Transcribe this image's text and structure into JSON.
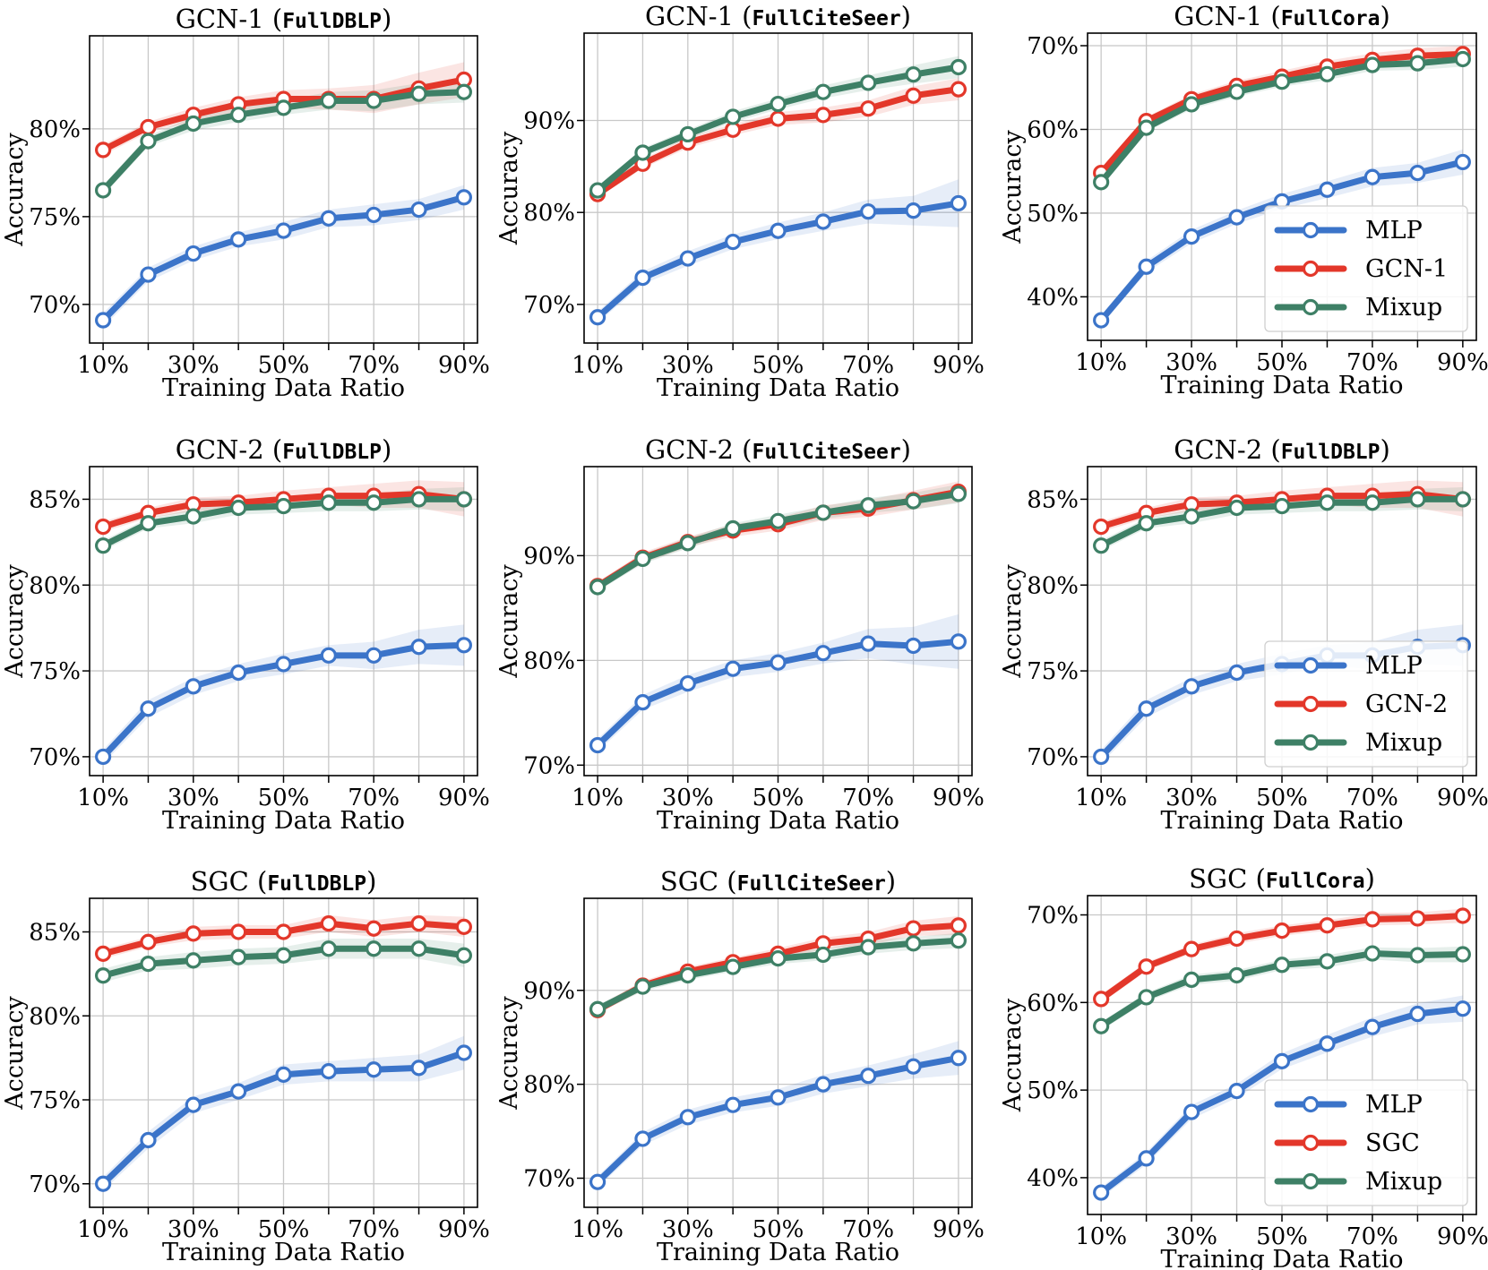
{
  "colors": {
    "MLP": "#3b74c9",
    "GCN-1": "#e3372a",
    "GCN-2": "#e3372a",
    "SGC": "#e3372a",
    "Mixup": "#3e8066"
  },
  "chart_data": [
    {
      "type": "line",
      "model": "GCN-1",
      "dataset": "FullDBLP",
      "xlabel": "Training Data Ratio",
      "ylabel": "Accuracy",
      "x": [
        10,
        20,
        30,
        40,
        50,
        60,
        70,
        80,
        90
      ],
      "xticks": [
        "10%",
        "30%",
        "50%",
        "70%",
        "90%"
      ],
      "ylim": [
        67.8,
        85.3
      ],
      "yticks": [
        70,
        75,
        80
      ],
      "ytick_labels": [
        "70%",
        "75%",
        "80%"
      ],
      "legend": false,
      "series": [
        {
          "name": "MLP",
          "values": [
            69.1,
            71.7,
            72.9,
            73.7,
            74.2,
            74.9,
            75.1,
            75.4,
            76.1
          ],
          "spread": [
            0.4,
            0.4,
            0.4,
            0.4,
            0.5,
            0.5,
            0.6,
            0.6,
            0.7
          ]
        },
        {
          "name": "GCN-1",
          "values": [
            78.8,
            80.1,
            80.8,
            81.4,
            81.7,
            81.7,
            81.7,
            82.3,
            82.8
          ],
          "spread": [
            0.3,
            0.3,
            0.4,
            0.4,
            0.5,
            0.6,
            0.8,
            0.9,
            1.0
          ]
        },
        {
          "name": "Mixup",
          "values": [
            76.5,
            79.3,
            80.3,
            80.8,
            81.2,
            81.6,
            81.6,
            82.0,
            82.1
          ],
          "spread": [
            0.3,
            0.3,
            0.4,
            0.4,
            0.4,
            0.5,
            0.6,
            0.6,
            0.6
          ]
        }
      ]
    },
    {
      "type": "line",
      "model": "GCN-1",
      "dataset": "FullCiteSeer",
      "xlabel": "Training Data Ratio",
      "ylabel": "Accuracy",
      "x": [
        10,
        20,
        30,
        40,
        50,
        60,
        70,
        80,
        90
      ],
      "xticks": [
        "10%",
        "30%",
        "50%",
        "70%",
        "90%"
      ],
      "ylim": [
        65.8,
        99.5
      ],
      "yticks": [
        70,
        80,
        90
      ],
      "ytick_labels": [
        "70%",
        "80%",
        "90%"
      ],
      "legend": false,
      "series": [
        {
          "name": "MLP",
          "values": [
            68.6,
            72.9,
            75.0,
            76.8,
            78.0,
            79.0,
            80.1,
            80.2,
            81.0
          ],
          "spread": [
            0.6,
            0.7,
            0.8,
            0.8,
            0.9,
            1.0,
            1.3,
            1.6,
            2.6
          ]
        },
        {
          "name": "GCN-1",
          "values": [
            82.0,
            85.3,
            87.6,
            89.0,
            90.2,
            90.6,
            91.3,
            92.7,
            93.4
          ],
          "spread": [
            0.4,
            0.5,
            0.6,
            0.6,
            0.7,
            0.8,
            0.9,
            1.0,
            1.2
          ]
        },
        {
          "name": "Mixup",
          "values": [
            82.4,
            86.5,
            88.5,
            90.4,
            91.8,
            93.1,
            94.1,
            95.0,
            95.8
          ],
          "spread": [
            0.4,
            0.5,
            0.5,
            0.6,
            0.6,
            0.7,
            0.8,
            1.0,
            1.2
          ]
        }
      ]
    },
    {
      "type": "line",
      "model": "GCN-1",
      "dataset": "FullCora",
      "xlabel": "Training Data Ratio",
      "ylabel": "Accuracy",
      "x": [
        10,
        20,
        30,
        40,
        50,
        60,
        70,
        80,
        90
      ],
      "xticks": [
        "10%",
        "30%",
        "50%",
        "70%",
        "90%"
      ],
      "ylim": [
        34.8,
        71.5
      ],
      "yticks": [
        40,
        50,
        60,
        70
      ],
      "ytick_labels": [
        "40%",
        "50%",
        "60%",
        "70%"
      ],
      "legend": true,
      "legend_position": "lower-right",
      "series": [
        {
          "name": "MLP",
          "values": [
            37.2,
            43.6,
            47.2,
            49.5,
            51.4,
            52.8,
            54.3,
            54.8,
            56.1
          ],
          "spread": [
            0.6,
            0.7,
            0.8,
            0.8,
            0.9,
            1.0,
            1.1,
            1.2,
            1.5
          ]
        },
        {
          "name": "GCN-1",
          "values": [
            54.8,
            61.0,
            63.6,
            65.2,
            66.3,
            67.5,
            68.3,
            68.8,
            69.0
          ],
          "spread": [
            0.5,
            0.5,
            0.6,
            0.6,
            0.7,
            0.7,
            0.8,
            0.9,
            1.0
          ]
        },
        {
          "name": "Mixup",
          "values": [
            53.7,
            60.2,
            63.0,
            64.5,
            65.7,
            66.6,
            67.7,
            67.9,
            68.4
          ],
          "spread": [
            0.5,
            0.5,
            0.6,
            0.6,
            0.6,
            0.7,
            0.7,
            0.8,
            0.9
          ]
        }
      ]
    },
    {
      "type": "line",
      "model": "GCN-2",
      "dataset": "FullDBLP",
      "xlabel": "Training Data Ratio",
      "ylabel": "Accuracy",
      "x": [
        10,
        20,
        30,
        40,
        50,
        60,
        70,
        80,
        90
      ],
      "xticks": [
        "10%",
        "30%",
        "50%",
        "70%",
        "90%"
      ],
      "ylim": [
        68.9,
        86.9
      ],
      "yticks": [
        70,
        75,
        80,
        85
      ],
      "ytick_labels": [
        "70%",
        "75%",
        "80%",
        "85%"
      ],
      "legend": false,
      "series": [
        {
          "name": "MLP",
          "values": [
            70.0,
            72.8,
            74.1,
            74.9,
            75.4,
            75.9,
            75.9,
            76.4,
            76.5
          ],
          "spread": [
            0.4,
            0.5,
            0.5,
            0.5,
            0.6,
            0.6,
            0.8,
            1.0,
            1.2
          ]
        },
        {
          "name": "GCN-2",
          "values": [
            83.4,
            84.2,
            84.7,
            84.8,
            85.0,
            85.2,
            85.2,
            85.3,
            85.0
          ],
          "spread": [
            0.3,
            0.3,
            0.4,
            0.4,
            0.5,
            0.5,
            0.7,
            0.8,
            1.0
          ]
        },
        {
          "name": "Mixup",
          "values": [
            82.3,
            83.6,
            84.0,
            84.5,
            84.6,
            84.8,
            84.8,
            85.0,
            85.0
          ],
          "spread": [
            0.3,
            0.3,
            0.4,
            0.4,
            0.4,
            0.5,
            0.5,
            0.6,
            0.7
          ]
        }
      ]
    },
    {
      "type": "line",
      "model": "GCN-2",
      "dataset": "FullCiteSeer",
      "xlabel": "Training Data Ratio",
      "ylabel": "Accuracy",
      "x": [
        10,
        20,
        30,
        40,
        50,
        60,
        70,
        80,
        90
      ],
      "xticks": [
        "10%",
        "30%",
        "50%",
        "70%",
        "90%"
      ],
      "ylim": [
        69.0,
        98.5
      ],
      "yticks": [
        70,
        80,
        90
      ],
      "ytick_labels": [
        "70%",
        "80%",
        "90%"
      ],
      "legend": false,
      "series": [
        {
          "name": "MLP",
          "values": [
            71.9,
            76.0,
            77.8,
            79.2,
            79.8,
            80.7,
            81.6,
            81.4,
            81.8
          ],
          "spread": [
            0.6,
            0.7,
            0.8,
            0.8,
            0.9,
            1.0,
            1.4,
            1.8,
            2.6
          ]
        },
        {
          "name": "GCN-2",
          "values": [
            87.1,
            89.8,
            91.3,
            92.4,
            93.0,
            94.1,
            94.5,
            95.3,
            96.1
          ],
          "spread": [
            0.4,
            0.5,
            0.5,
            0.6,
            0.6,
            0.7,
            0.8,
            0.9,
            1.0
          ]
        },
        {
          "name": "Mixup",
          "values": [
            87.0,
            89.7,
            91.2,
            92.6,
            93.3,
            94.1,
            94.8,
            95.2,
            95.9
          ],
          "spread": [
            0.4,
            0.5,
            0.5,
            0.5,
            0.6,
            0.6,
            0.7,
            0.8,
            0.9
          ]
        }
      ]
    },
    {
      "type": "line",
      "model": "GCN-2",
      "dataset": "FullDBLP",
      "xlabel": "Training Data Ratio",
      "ylabel": "Accuracy",
      "x": [
        10,
        20,
        30,
        40,
        50,
        60,
        70,
        80,
        90
      ],
      "xticks": [
        "10%",
        "30%",
        "50%",
        "70%",
        "90%"
      ],
      "ylim": [
        68.9,
        86.9
      ],
      "yticks": [
        70,
        75,
        80,
        85
      ],
      "ytick_labels": [
        "70%",
        "75%",
        "80%",
        "85%"
      ],
      "legend": true,
      "legend_position": "lower-right",
      "series": [
        {
          "name": "MLP",
          "values": [
            70.0,
            72.8,
            74.1,
            74.9,
            75.4,
            75.9,
            75.9,
            76.4,
            76.5
          ],
          "spread": [
            0.4,
            0.5,
            0.5,
            0.5,
            0.6,
            0.6,
            0.8,
            1.0,
            1.2
          ]
        },
        {
          "name": "GCN-2",
          "values": [
            83.4,
            84.2,
            84.7,
            84.8,
            85.0,
            85.2,
            85.2,
            85.3,
            85.0
          ],
          "spread": [
            0.3,
            0.3,
            0.4,
            0.4,
            0.5,
            0.5,
            0.7,
            0.8,
            1.0
          ]
        },
        {
          "name": "Mixup",
          "values": [
            82.3,
            83.6,
            84.0,
            84.5,
            84.6,
            84.8,
            84.8,
            85.0,
            85.0
          ],
          "spread": [
            0.3,
            0.3,
            0.4,
            0.4,
            0.4,
            0.5,
            0.5,
            0.6,
            0.7
          ]
        }
      ]
    },
    {
      "type": "line",
      "model": "SGC",
      "dataset": "FullDBLP",
      "xlabel": "Training Data Ratio",
      "ylabel": "Accuracy",
      "x": [
        10,
        20,
        30,
        40,
        50,
        60,
        70,
        80,
        90
      ],
      "xticks": [
        "10%",
        "30%",
        "50%",
        "70%",
        "90%"
      ],
      "ylim": [
        68.6,
        87.0
      ],
      "yticks": [
        70,
        75,
        80,
        85
      ],
      "ytick_labels": [
        "70%",
        "75%",
        "80%",
        "85%"
      ],
      "legend": false,
      "series": [
        {
          "name": "MLP",
          "values": [
            70.0,
            72.6,
            74.7,
            75.5,
            76.5,
            76.7,
            76.8,
            76.9,
            77.8
          ],
          "spread": [
            0.4,
            0.5,
            0.5,
            0.5,
            0.6,
            0.6,
            0.7,
            0.8,
            1.0
          ]
        },
        {
          "name": "SGC",
          "values": [
            83.7,
            84.4,
            84.9,
            85.0,
            85.0,
            85.5,
            85.2,
            85.5,
            85.3
          ],
          "spread": [
            0.3,
            0.3,
            0.4,
            0.4,
            0.4,
            0.5,
            0.5,
            0.5,
            0.6
          ]
        },
        {
          "name": "Mixup",
          "values": [
            82.4,
            83.1,
            83.3,
            83.5,
            83.6,
            84.0,
            84.0,
            84.0,
            83.6
          ],
          "spread": [
            0.4,
            0.4,
            0.5,
            0.5,
            0.5,
            0.6,
            0.6,
            0.6,
            0.7
          ]
        }
      ]
    },
    {
      "type": "line",
      "model": "SGC",
      "dataset": "FullCiteSeer",
      "xlabel": "Training Data Ratio",
      "ylabel": "Accuracy",
      "x": [
        10,
        20,
        30,
        40,
        50,
        60,
        70,
        80,
        90
      ],
      "xticks": [
        "10%",
        "30%",
        "50%",
        "70%",
        "90%"
      ],
      "ylim": [
        66.9,
        99.8
      ],
      "yticks": [
        70,
        80,
        90
      ],
      "ytick_labels": [
        "70%",
        "80%",
        "90%"
      ],
      "legend": false,
      "series": [
        {
          "name": "MLP",
          "values": [
            69.6,
            74.2,
            76.5,
            77.8,
            78.6,
            80.0,
            80.9,
            81.9,
            82.8
          ],
          "spread": [
            0.6,
            0.7,
            0.8,
            0.8,
            0.9,
            1.0,
            1.1,
            1.3,
            1.8
          ]
        },
        {
          "name": "SGC",
          "values": [
            87.9,
            90.5,
            92.0,
            93.0,
            93.9,
            95.0,
            95.5,
            96.6,
            96.9
          ],
          "spread": [
            0.4,
            0.5,
            0.5,
            0.5,
            0.6,
            0.6,
            0.7,
            0.8,
            1.0
          ]
        },
        {
          "name": "Mixup",
          "values": [
            88.0,
            90.4,
            91.6,
            92.5,
            93.4,
            93.8,
            94.6,
            95.0,
            95.3
          ],
          "spread": [
            0.4,
            0.5,
            0.5,
            0.5,
            0.6,
            0.6,
            0.7,
            0.7,
            0.8
          ]
        }
      ]
    },
    {
      "type": "line",
      "model": "SGC",
      "dataset": "FullCora",
      "xlabel": "Training Data Ratio",
      "ylabel": "Accuracy",
      "x": [
        10,
        20,
        30,
        40,
        50,
        60,
        70,
        80,
        90
      ],
      "xticks": [
        "10%",
        "30%",
        "50%",
        "70%",
        "90%"
      ],
      "ylim": [
        35.8,
        72.2
      ],
      "yticks": [
        40,
        50,
        60,
        70
      ],
      "ytick_labels": [
        "40%",
        "50%",
        "60%",
        "70%"
      ],
      "legend": true,
      "legend_position": "lower-right",
      "series": [
        {
          "name": "MLP",
          "values": [
            38.3,
            42.2,
            47.5,
            49.9,
            53.3,
            55.3,
            57.2,
            58.7,
            59.3
          ],
          "spread": [
            0.6,
            0.7,
            0.8,
            0.8,
            0.9,
            1.0,
            1.1,
            1.2,
            1.5
          ]
        },
        {
          "name": "SGC",
          "values": [
            60.4,
            64.1,
            66.1,
            67.3,
            68.2,
            68.8,
            69.5,
            69.6,
            69.9
          ],
          "spread": [
            0.5,
            0.5,
            0.5,
            0.6,
            0.6,
            0.6,
            0.7,
            0.7,
            0.8
          ]
        },
        {
          "name": "Mixup",
          "values": [
            57.3,
            60.6,
            62.6,
            63.1,
            64.3,
            64.7,
            65.6,
            65.4,
            65.5
          ],
          "spread": [
            0.5,
            0.5,
            0.6,
            0.6,
            0.6,
            0.7,
            0.7,
            0.8,
            0.9
          ]
        }
      ]
    }
  ]
}
